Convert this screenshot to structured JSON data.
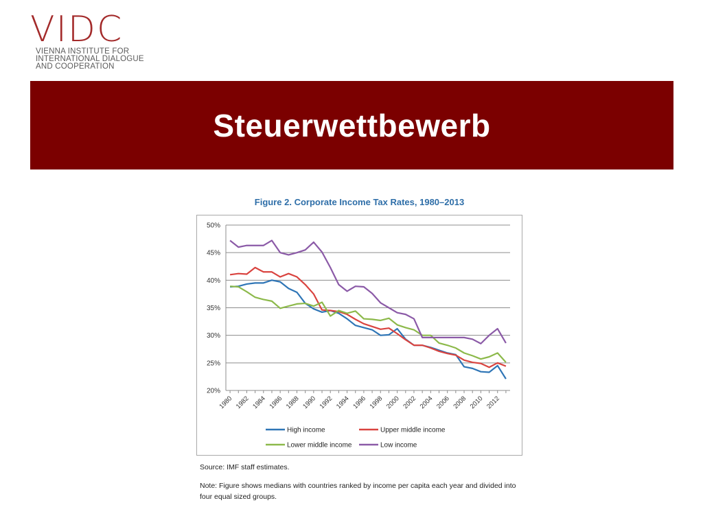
{
  "logo": {
    "mark": "VIDC",
    "lines": [
      "VIENNA INSTITUTE FOR",
      "INTERNATIONAL DIALOGUE",
      "AND COOPERATION"
    ]
  },
  "banner": {
    "title": "Steuerwettbewerb"
  },
  "figure": {
    "title": "Figure 2. Corporate Income Tax Rates, 1980–2013",
    "source": "Source: IMF staff estimates.",
    "note": "Note: Figure shows medians with countries ranked by income per capita each year and divided into four equal sized groups."
  },
  "colors": {
    "banner": "#7b0000",
    "figure_title": "#2e6ea8"
  },
  "chart_data": {
    "type": "line",
    "title": "Figure 2. Corporate Income Tax Rates, 1980–2013",
    "xlabel": "",
    "ylabel": "",
    "x": [
      1980,
      1981,
      1982,
      1983,
      1984,
      1985,
      1986,
      1987,
      1988,
      1989,
      1990,
      1991,
      1992,
      1993,
      1994,
      1995,
      1996,
      1997,
      1998,
      1999,
      2000,
      2001,
      2002,
      2003,
      2004,
      2005,
      2006,
      2007,
      2008,
      2009,
      2010,
      2011,
      2012,
      2013
    ],
    "x_tick_labels": [
      "1980",
      "1982",
      "1984",
      "1986",
      "1988",
      "1990",
      "1992",
      "1994",
      "1996",
      "1998",
      "2000",
      "2002",
      "2004",
      "2006",
      "2008",
      "2010",
      "2012"
    ],
    "ylim": [
      20,
      50
    ],
    "y_ticks": [
      20,
      25,
      30,
      35,
      40,
      45,
      50
    ],
    "y_tick_labels": [
      "20%",
      "25%",
      "30%",
      "35%",
      "40%",
      "45%",
      "50%"
    ],
    "grid": "horizontal",
    "legend_position": "bottom",
    "series": [
      {
        "name": "High income",
        "color": "#2e75b6",
        "values": [
          38.8,
          38.9,
          39.3,
          39.5,
          39.5,
          40.0,
          39.7,
          38.5,
          37.8,
          35.8,
          34.8,
          34.2,
          34.5,
          34.0,
          33.0,
          31.8,
          31.4,
          31.0,
          30.0,
          30.1,
          31.2,
          29.3,
          28.2,
          28.2,
          27.8,
          27.3,
          26.8,
          26.5,
          24.3,
          24.0,
          23.4,
          23.3,
          24.5,
          22.1
        ]
      },
      {
        "name": "Upper middle income",
        "color": "#d9433f",
        "values": [
          41.0,
          41.2,
          41.1,
          42.3,
          41.5,
          41.5,
          40.6,
          41.2,
          40.6,
          39.2,
          37.5,
          34.6,
          34.5,
          34.3,
          33.8,
          32.9,
          32.1,
          31.6,
          31.1,
          31.3,
          30.3,
          29.2,
          28.2,
          28.2,
          27.7,
          27.1,
          26.7,
          26.4,
          25.5,
          25.1,
          24.9,
          24.2,
          25.0,
          24.4
        ]
      },
      {
        "name": "Lower middle income",
        "color": "#8cb94a",
        "values": [
          38.9,
          38.8,
          37.9,
          36.9,
          36.5,
          36.2,
          34.9,
          35.3,
          35.7,
          35.8,
          35.3,
          36.0,
          33.5,
          34.5,
          34.0,
          34.4,
          33.0,
          32.9,
          32.7,
          33.1,
          31.9,
          31.4,
          31.0,
          30.0,
          30.0,
          28.6,
          28.2,
          27.7,
          26.8,
          26.3,
          25.7,
          26.1,
          26.8,
          25.1
        ]
      },
      {
        "name": "Low income",
        "color": "#8b5aa7",
        "values": [
          47.2,
          46.0,
          46.3,
          46.3,
          46.3,
          47.2,
          45.0,
          44.6,
          45.0,
          45.5,
          46.9,
          45.1,
          42.3,
          39.2,
          38.0,
          38.9,
          38.8,
          37.6,
          35.9,
          35.0,
          34.1,
          33.8,
          33.0,
          29.6,
          29.6,
          29.6,
          29.6,
          29.6,
          29.6,
          29.3,
          28.5,
          30.0,
          31.2,
          28.6
        ]
      }
    ]
  }
}
